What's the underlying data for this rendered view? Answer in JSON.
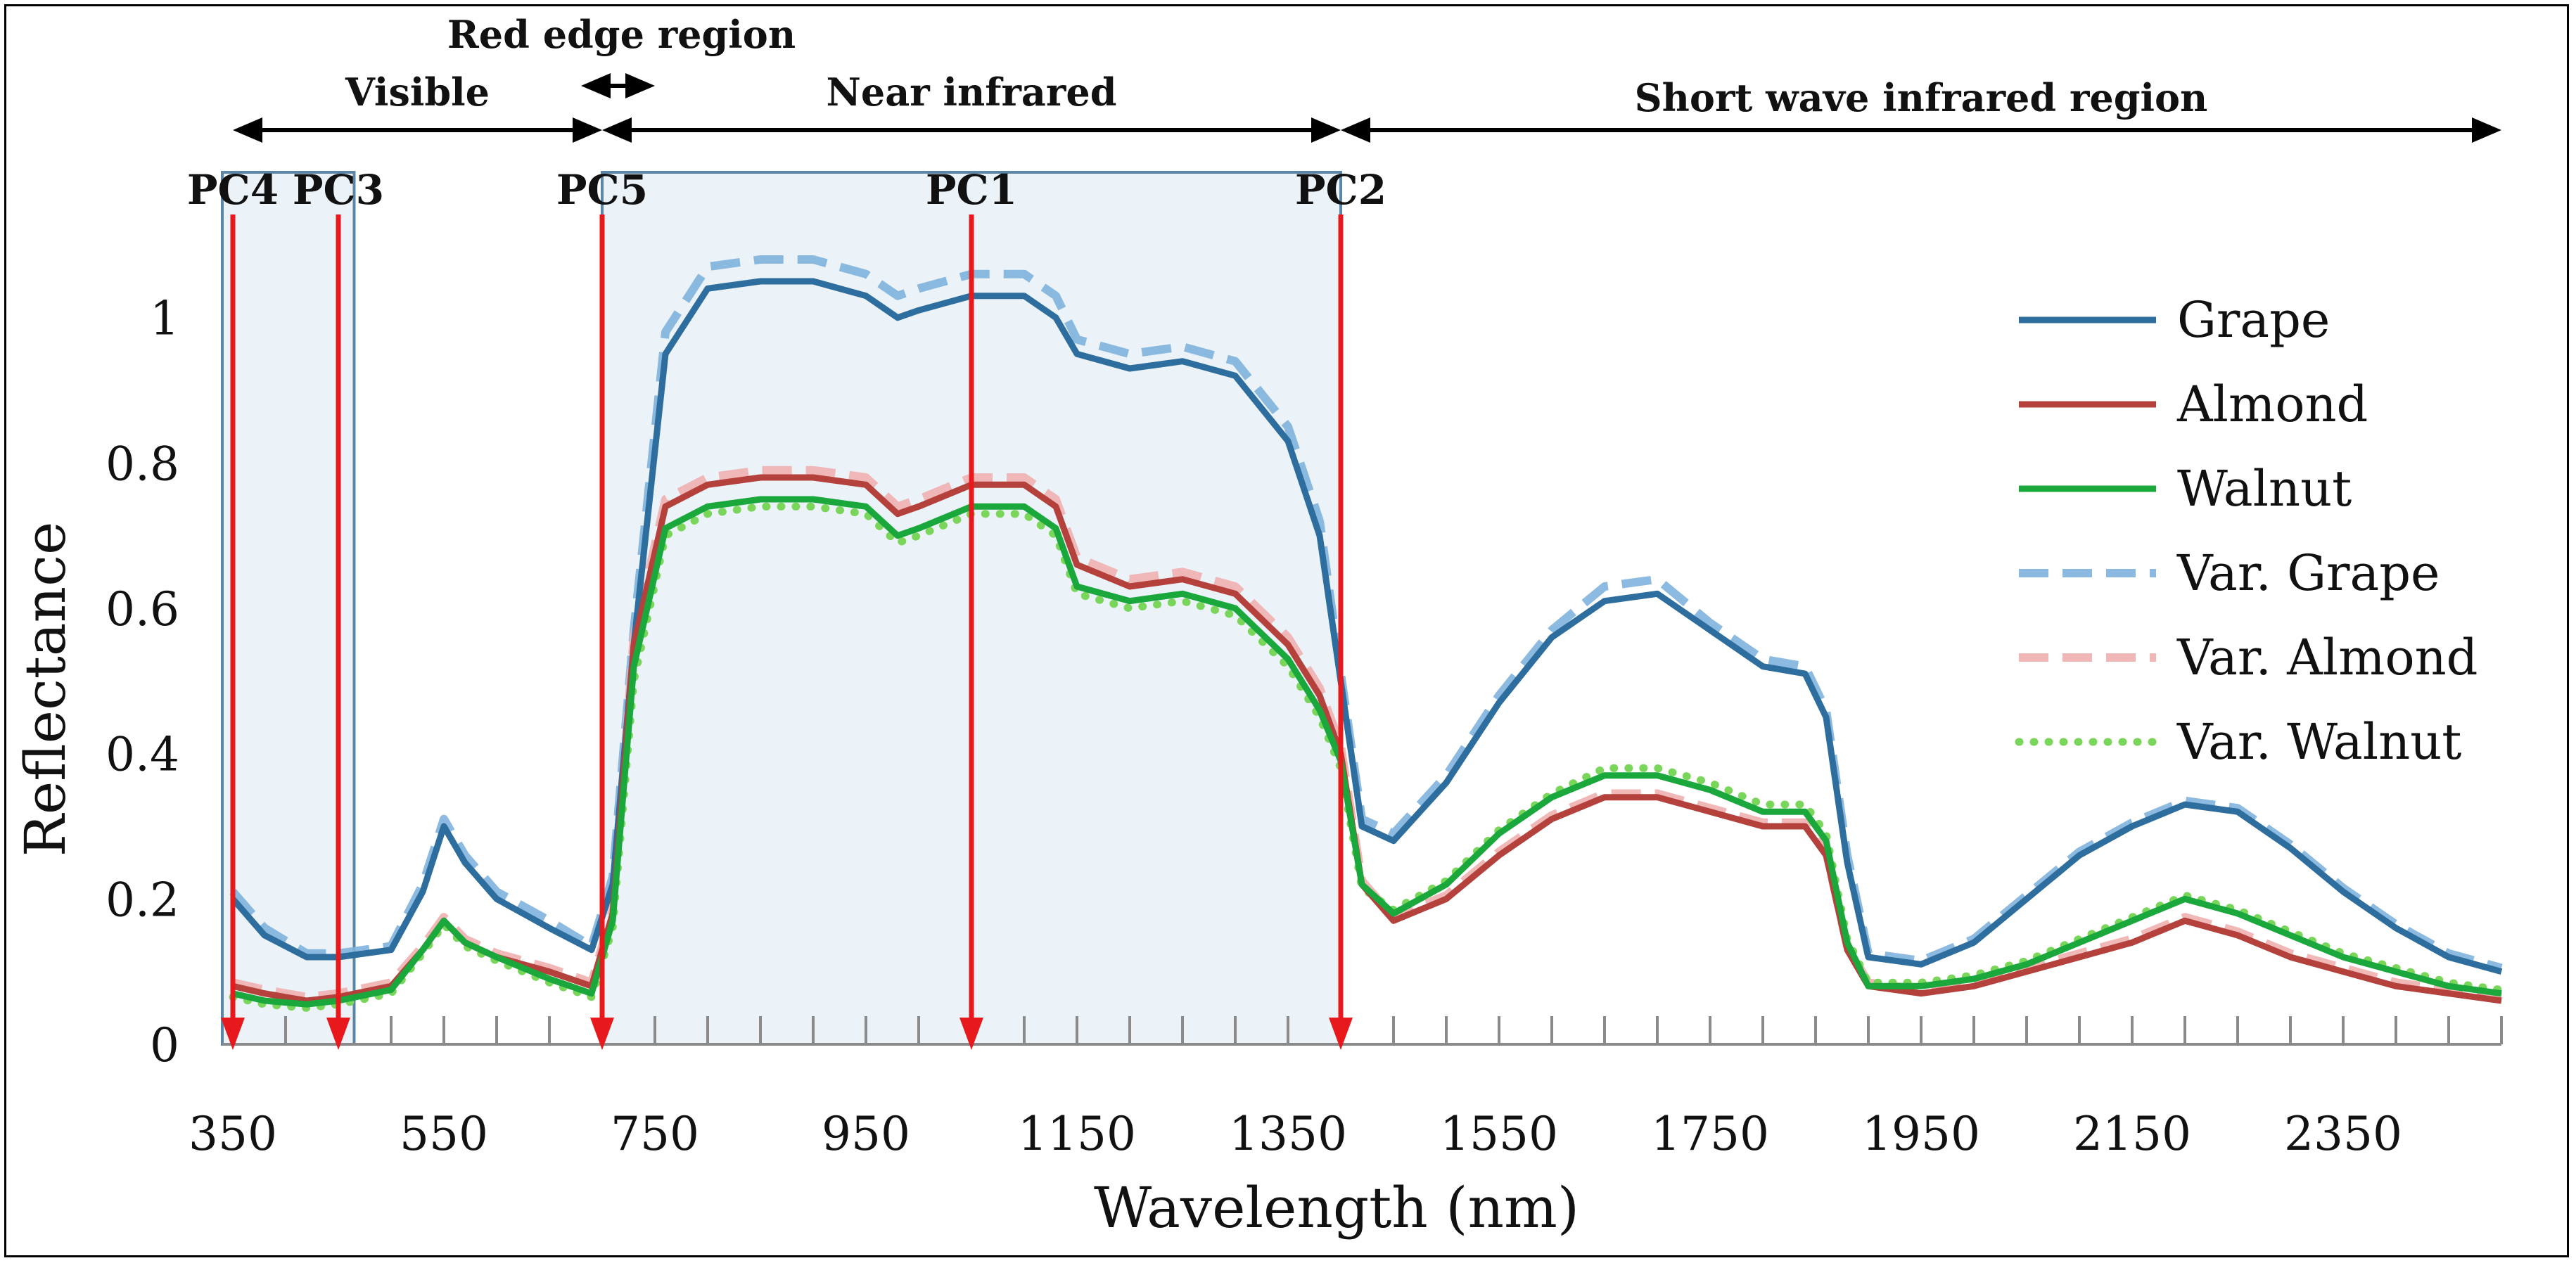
{
  "chart_data": {
    "type": "line",
    "xlabel": "Wavelength (nm)",
    "ylabel": "Reflectance",
    "xlim": [
      340,
      2500
    ],
    "ylim": [
      0,
      1.2
    ],
    "x_ticks": [
      350,
      550,
      750,
      950,
      1150,
      1350,
      1550,
      1750,
      1950,
      2150,
      2350
    ],
    "y_ticks": [
      0,
      0.2,
      0.4,
      0.6,
      0.8,
      1
    ],
    "y_tick_labels": [
      "0",
      "0.2",
      "0.4",
      "0.6",
      "0.8",
      "1"
    ],
    "colors": {
      "grape": "#2e6e9e",
      "almond": "#b4413b",
      "walnut": "#1aa83c",
      "var_grape": "#7fb2dd",
      "var_almond": "#f0b0b0",
      "var_walnut": "#7ad65a",
      "arrow": "#e8191c",
      "shade": "#e9f1f7",
      "axis": "#8a8a8a"
    },
    "regions": [
      {
        "label": "Visible",
        "from": 350,
        "to": 700
      },
      {
        "label": "Red edge region",
        "from": 680,
        "to": 750
      },
      {
        "label": "Near infrared",
        "from": 700,
        "to": 1400
      },
      {
        "label": "Short wave infrared region",
        "from": 1400,
        "to": 2500
      }
    ],
    "shaded_bands": [
      {
        "from": 340,
        "to": 465
      },
      {
        "from": 700,
        "to": 1400
      }
    ],
    "principal_components": [
      {
        "label": "PC4",
        "wavelength": 350
      },
      {
        "label": "PC3",
        "wavelength": 450
      },
      {
        "label": "PC5",
        "wavelength": 700
      },
      {
        "label": "PC1",
        "wavelength": 1050
      },
      {
        "label": "PC2",
        "wavelength": 1400
      }
    ],
    "legend_position": "top-right",
    "series": [
      {
        "name": "Grape",
        "key": "grape",
        "style": "solid",
        "x": [
          350,
          380,
          420,
          450,
          500,
          530,
          550,
          570,
          600,
          650,
          690,
          710,
          730,
          760,
          800,
          850,
          900,
          950,
          980,
          1000,
          1050,
          1100,
          1130,
          1150,
          1200,
          1250,
          1300,
          1350,
          1380,
          1400,
          1420,
          1450,
          1500,
          1550,
          1600,
          1650,
          1700,
          1750,
          1800,
          1840,
          1860,
          1880,
          1900,
          1950,
          2000,
          2050,
          2100,
          2150,
          2200,
          2250,
          2300,
          2350,
          2400,
          2450,
          2500
        ],
        "y": [
          0.2,
          0.15,
          0.12,
          0.12,
          0.13,
          0.21,
          0.3,
          0.25,
          0.2,
          0.16,
          0.13,
          0.22,
          0.55,
          0.95,
          1.04,
          1.05,
          1.05,
          1.03,
          1.0,
          1.01,
          1.03,
          1.03,
          1.0,
          0.95,
          0.93,
          0.94,
          0.92,
          0.83,
          0.7,
          0.5,
          0.3,
          0.28,
          0.36,
          0.47,
          0.56,
          0.61,
          0.62,
          0.57,
          0.52,
          0.51,
          0.45,
          0.25,
          0.12,
          0.11,
          0.14,
          0.2,
          0.26,
          0.3,
          0.33,
          0.32,
          0.27,
          0.21,
          0.16,
          0.12,
          0.1
        ]
      },
      {
        "name": "Almond",
        "key": "almond",
        "style": "solid",
        "x": [
          350,
          380,
          420,
          450,
          500,
          530,
          550,
          570,
          600,
          650,
          690,
          710,
          730,
          760,
          800,
          850,
          900,
          950,
          980,
          1000,
          1050,
          1100,
          1130,
          1150,
          1200,
          1250,
          1300,
          1350,
          1380,
          1400,
          1420,
          1450,
          1500,
          1550,
          1600,
          1650,
          1700,
          1750,
          1800,
          1840,
          1860,
          1880,
          1900,
          1950,
          2000,
          2050,
          2100,
          2150,
          2200,
          2250,
          2300,
          2350,
          2400,
          2450,
          2500
        ],
        "y": [
          0.08,
          0.07,
          0.06,
          0.065,
          0.08,
          0.13,
          0.17,
          0.14,
          0.12,
          0.1,
          0.08,
          0.18,
          0.55,
          0.74,
          0.77,
          0.78,
          0.78,
          0.77,
          0.73,
          0.74,
          0.77,
          0.77,
          0.74,
          0.66,
          0.63,
          0.64,
          0.62,
          0.55,
          0.48,
          0.4,
          0.22,
          0.17,
          0.2,
          0.26,
          0.31,
          0.34,
          0.34,
          0.32,
          0.3,
          0.3,
          0.26,
          0.13,
          0.08,
          0.07,
          0.08,
          0.1,
          0.12,
          0.14,
          0.17,
          0.15,
          0.12,
          0.1,
          0.08,
          0.07,
          0.06
        ]
      },
      {
        "name": "Walnut",
        "key": "walnut",
        "style": "solid",
        "x": [
          350,
          380,
          420,
          450,
          500,
          530,
          550,
          570,
          600,
          650,
          690,
          710,
          730,
          760,
          800,
          850,
          900,
          950,
          980,
          1000,
          1050,
          1100,
          1130,
          1150,
          1200,
          1250,
          1300,
          1350,
          1380,
          1400,
          1420,
          1450,
          1500,
          1550,
          1600,
          1650,
          1700,
          1750,
          1800,
          1840,
          1860,
          1880,
          1900,
          1950,
          2000,
          2050,
          2100,
          2150,
          2200,
          2250,
          2300,
          2350,
          2400,
          2450,
          2500
        ],
        "y": [
          0.07,
          0.06,
          0.055,
          0.06,
          0.075,
          0.13,
          0.17,
          0.14,
          0.12,
          0.09,
          0.07,
          0.17,
          0.52,
          0.71,
          0.74,
          0.75,
          0.75,
          0.74,
          0.7,
          0.71,
          0.74,
          0.74,
          0.71,
          0.63,
          0.61,
          0.62,
          0.6,
          0.53,
          0.46,
          0.39,
          0.22,
          0.18,
          0.22,
          0.29,
          0.34,
          0.37,
          0.37,
          0.35,
          0.32,
          0.32,
          0.28,
          0.14,
          0.08,
          0.08,
          0.09,
          0.11,
          0.14,
          0.17,
          0.2,
          0.18,
          0.15,
          0.12,
          0.1,
          0.08,
          0.07
        ]
      },
      {
        "name": "Var. Grape",
        "key": "var_grape",
        "style": "dashed",
        "x": [
          350,
          380,
          420,
          450,
          500,
          530,
          550,
          570,
          600,
          650,
          690,
          710,
          730,
          760,
          800,
          850,
          900,
          950,
          980,
          1000,
          1050,
          1100,
          1130,
          1150,
          1200,
          1250,
          1300,
          1350,
          1380,
          1400,
          1420,
          1450,
          1500,
          1550,
          1600,
          1650,
          1700,
          1750,
          1800,
          1840,
          1860,
          1880,
          1900,
          1950,
          2000,
          2050,
          2100,
          2150,
          2200,
          2250,
          2300,
          2350,
          2400,
          2450,
          2500
        ],
        "y": [
          0.21,
          0.16,
          0.125,
          0.125,
          0.135,
          0.22,
          0.31,
          0.26,
          0.21,
          0.17,
          0.135,
          0.23,
          0.57,
          0.98,
          1.07,
          1.08,
          1.08,
          1.06,
          1.03,
          1.04,
          1.06,
          1.06,
          1.03,
          0.97,
          0.95,
          0.96,
          0.94,
          0.85,
          0.72,
          0.51,
          0.31,
          0.29,
          0.37,
          0.48,
          0.57,
          0.63,
          0.64,
          0.58,
          0.53,
          0.52,
          0.46,
          0.26,
          0.125,
          0.115,
          0.145,
          0.205,
          0.265,
          0.305,
          0.335,
          0.325,
          0.275,
          0.215,
          0.165,
          0.125,
          0.105
        ]
      },
      {
        "name": "Var. Almond",
        "key": "var_almond",
        "style": "dashed",
        "x": [
          350,
          380,
          420,
          450,
          500,
          530,
          550,
          570,
          600,
          650,
          690,
          710,
          730,
          760,
          800,
          850,
          900,
          950,
          980,
          1000,
          1050,
          1100,
          1130,
          1150,
          1200,
          1250,
          1300,
          1350,
          1380,
          1400,
          1420,
          1450,
          1500,
          1550,
          1600,
          1650,
          1700,
          1750,
          1800,
          1840,
          1860,
          1880,
          1900,
          1950,
          2000,
          2050,
          2100,
          2150,
          2200,
          2250,
          2300,
          2350,
          2400,
          2450,
          2500
        ],
        "y": [
          0.085,
          0.075,
          0.065,
          0.07,
          0.085,
          0.135,
          0.175,
          0.145,
          0.125,
          0.105,
          0.085,
          0.185,
          0.56,
          0.75,
          0.78,
          0.79,
          0.79,
          0.78,
          0.74,
          0.75,
          0.78,
          0.78,
          0.75,
          0.67,
          0.64,
          0.65,
          0.63,
          0.56,
          0.49,
          0.41,
          0.225,
          0.175,
          0.205,
          0.265,
          0.315,
          0.345,
          0.345,
          0.325,
          0.305,
          0.305,
          0.265,
          0.135,
          0.085,
          0.075,
          0.085,
          0.105,
          0.125,
          0.145,
          0.175,
          0.155,
          0.125,
          0.105,
          0.085,
          0.075,
          0.065
        ]
      },
      {
        "name": "Var. Walnut",
        "key": "var_walnut",
        "style": "dotted",
        "x": [
          350,
          380,
          420,
          450,
          500,
          530,
          550,
          570,
          600,
          650,
          690,
          710,
          730,
          760,
          800,
          850,
          900,
          950,
          980,
          1000,
          1050,
          1100,
          1130,
          1150,
          1200,
          1250,
          1300,
          1350,
          1380,
          1400,
          1420,
          1450,
          1500,
          1550,
          1600,
          1650,
          1700,
          1750,
          1800,
          1840,
          1860,
          1880,
          1900,
          1950,
          2000,
          2050,
          2100,
          2150,
          2200,
          2250,
          2300,
          2350,
          2400,
          2450,
          2500
        ],
        "y": [
          0.065,
          0.055,
          0.05,
          0.055,
          0.07,
          0.125,
          0.165,
          0.135,
          0.115,
          0.085,
          0.065,
          0.16,
          0.5,
          0.7,
          0.73,
          0.74,
          0.74,
          0.73,
          0.69,
          0.7,
          0.73,
          0.73,
          0.7,
          0.62,
          0.6,
          0.61,
          0.59,
          0.52,
          0.45,
          0.38,
          0.215,
          0.185,
          0.225,
          0.295,
          0.345,
          0.38,
          0.38,
          0.36,
          0.33,
          0.33,
          0.29,
          0.145,
          0.085,
          0.085,
          0.095,
          0.115,
          0.145,
          0.175,
          0.205,
          0.185,
          0.155,
          0.125,
          0.105,
          0.085,
          0.075
        ]
      }
    ]
  }
}
